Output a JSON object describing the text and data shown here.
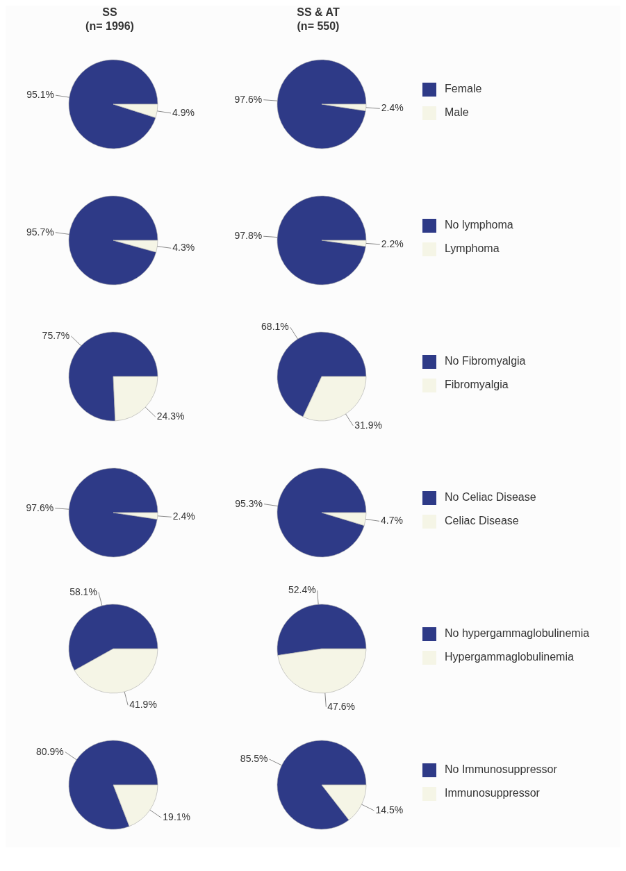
{
  "chart_data": [
    {
      "type": "pie",
      "title": "SS",
      "subtitle": "(n= 1996)",
      "categories": [
        null,
        null
      ],
      "values": [
        95.1,
        4.9
      ],
      "value_labels": [
        "95.1%",
        "4.9%"
      ],
      "colors": [
        "#2e3a87",
        "#f5f5e6"
      ],
      "legend": false
    },
    {
      "type": "pie",
      "title": "SS & AT",
      "subtitle": "(n= 550)",
      "categories": [
        "Female",
        "Male"
      ],
      "values": [
        97.6,
        2.4
      ],
      "value_labels": [
        "97.6%",
        "2.4%"
      ],
      "colors": [
        "#2e3a87",
        "#f5f5e6"
      ],
      "legend": "right"
    },
    {
      "type": "pie",
      "categories": [
        null,
        null
      ],
      "values": [
        95.7,
        4.3
      ],
      "value_labels": [
        "95.7%",
        "4.3%"
      ],
      "colors": [
        "#2e3a87",
        "#f5f5e6"
      ],
      "legend": false
    },
    {
      "type": "pie",
      "categories": [
        "No lymphoma",
        "Lymphoma"
      ],
      "values": [
        97.8,
        2.2
      ],
      "value_labels": [
        "97.8%",
        "2.2%"
      ],
      "colors": [
        "#2e3a87",
        "#f5f5e6"
      ],
      "legend": "right"
    },
    {
      "type": "pie",
      "categories": [
        null,
        null
      ],
      "values": [
        75.7,
        24.3
      ],
      "value_labels": [
        "75.7%",
        "24.3%"
      ],
      "colors": [
        "#2e3a87",
        "#f5f5e6"
      ],
      "legend": false
    },
    {
      "type": "pie",
      "categories": [
        "No Fibromyalgia",
        "Fibromyalgia"
      ],
      "values": [
        68.1,
        31.9
      ],
      "value_labels": [
        "68.1%",
        "31.9%"
      ],
      "colors": [
        "#2e3a87",
        "#f5f5e6"
      ],
      "legend": "right"
    },
    {
      "type": "pie",
      "categories": [
        null,
        null
      ],
      "values": [
        97.6,
        2.4
      ],
      "value_labels": [
        "97.6%",
        "2.4%"
      ],
      "colors": [
        "#2e3a87",
        "#f5f5e6"
      ],
      "legend": false
    },
    {
      "type": "pie",
      "categories": [
        "No Celiac Disease",
        "Celiac Disease"
      ],
      "values": [
        95.3,
        4.7
      ],
      "value_labels": [
        "95.3%",
        "4.7%"
      ],
      "colors": [
        "#2e3a87",
        "#f5f5e6"
      ],
      "legend": "right"
    },
    {
      "type": "pie",
      "categories": [
        null,
        null
      ],
      "values": [
        58.1,
        41.9
      ],
      "value_labels": [
        "58.1%",
        "41.9%"
      ],
      "colors": [
        "#2e3a87",
        "#f5f5e6"
      ],
      "legend": false
    },
    {
      "type": "pie",
      "categories": [
        "No hypergammaglobulinemia",
        "Hypergammaglobulinemia"
      ],
      "values": [
        52.4,
        47.6
      ],
      "value_labels": [
        "52.4%",
        "47.6%"
      ],
      "colors": [
        "#2e3a87",
        "#f5f5e6"
      ],
      "legend": "right"
    },
    {
      "type": "pie",
      "categories": [
        null,
        null
      ],
      "values": [
        80.9,
        19.1
      ],
      "value_labels": [
        "80.9%",
        "19.1%"
      ],
      "colors": [
        "#2e3a87",
        "#f5f5e6"
      ],
      "legend": false
    },
    {
      "type": "pie",
      "categories": [
        "No Immunosuppressor",
        "Immunosuppressor"
      ],
      "values": [
        85.5,
        14.5
      ],
      "value_labels": [
        "85.5%",
        "14.5%"
      ],
      "colors": [
        "#2e3a87",
        "#f5f5e6"
      ],
      "legend": "right"
    }
  ]
}
